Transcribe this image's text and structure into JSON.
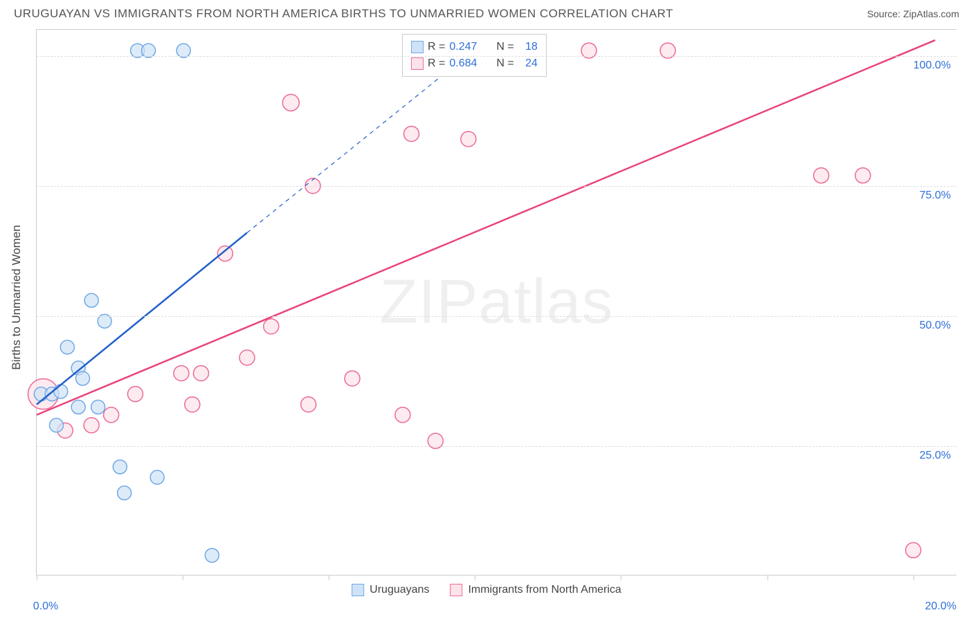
{
  "title": "URUGUAYAN VS IMMIGRANTS FROM NORTH AMERICA BIRTHS TO UNMARRIED WOMEN CORRELATION CHART",
  "source": "Source: ZipAtlas.com",
  "y_axis_title": "Births to Unmarried Women",
  "watermark": "ZIPatlas",
  "chart": {
    "type": "scatter",
    "xlim": [
      0,
      21
    ],
    "ylim": [
      0,
      105
    ],
    "x_ticks": [
      0,
      3.33,
      6.67,
      10,
      13.33,
      16.67,
      20
    ],
    "x_tick_labels_shown": {
      "0": "0.0%",
      "20": "20.0%"
    },
    "y_ticks": [
      25,
      50,
      75,
      100
    ],
    "y_tick_labels": [
      "25.0%",
      "50.0%",
      "75.0%",
      "100.0%"
    ],
    "grid_color": "#dddddd",
    "background_color": "#ffffff",
    "axis_color": "#cccccc",
    "label_color": "#2e6fd9",
    "series": [
      {
        "name": "Uruguayans",
        "color_fill": "#cfe2f7",
        "color_stroke": "#6fa8e6",
        "marker_radius": 10,
        "trend": {
          "color": "#1f5fc9",
          "width": 2.5,
          "x1": 0,
          "y1": 33,
          "x2_solid": 4.8,
          "y2_solid": 66,
          "x2_dash": 10.4,
          "y2_dash": 104
        },
        "stats": {
          "R": "0.247",
          "N": "18"
        },
        "points": [
          {
            "x": 2.3,
            "y": 101,
            "r": 10
          },
          {
            "x": 2.55,
            "y": 101,
            "r": 10
          },
          {
            "x": 3.35,
            "y": 101,
            "r": 10
          },
          {
            "x": 1.25,
            "y": 53,
            "r": 10
          },
          {
            "x": 1.55,
            "y": 49,
            "r": 10
          },
          {
            "x": 0.7,
            "y": 44,
            "r": 10
          },
          {
            "x": 0.95,
            "y": 40,
            "r": 10
          },
          {
            "x": 1.05,
            "y": 38,
            "r": 10
          },
          {
            "x": 0.1,
            "y": 35,
            "r": 10
          },
          {
            "x": 0.35,
            "y": 35,
            "r": 10
          },
          {
            "x": 0.55,
            "y": 35.5,
            "r": 10
          },
          {
            "x": 0.95,
            "y": 32.5,
            "r": 10
          },
          {
            "x": 1.4,
            "y": 32.5,
            "r": 10
          },
          {
            "x": 1.9,
            "y": 21,
            "r": 10
          },
          {
            "x": 2.0,
            "y": 16,
            "r": 10
          },
          {
            "x": 2.75,
            "y": 19,
            "r": 10
          },
          {
            "x": 4.0,
            "y": 4,
            "r": 10
          },
          {
            "x": 0.45,
            "y": 29,
            "r": 10
          }
        ]
      },
      {
        "name": "Immigrants from North America",
        "color_fill": "#fce3ea",
        "color_stroke": "#ec6a94",
        "marker_radius": 11,
        "trend": {
          "color": "#e9447a",
          "width": 2.5,
          "x1": 0,
          "y1": 31,
          "x2_solid": 20.5,
          "y2_solid": 103,
          "dash": false
        },
        "stats": {
          "R": "0.684",
          "N": "24"
        },
        "points": [
          {
            "x": 0.15,
            "y": 35,
            "r": 22
          },
          {
            "x": 0.65,
            "y": 28,
            "r": 11
          },
          {
            "x": 1.25,
            "y": 29,
            "r": 11
          },
          {
            "x": 1.7,
            "y": 31,
            "r": 11
          },
          {
            "x": 2.25,
            "y": 35,
            "r": 11
          },
          {
            "x": 3.3,
            "y": 39,
            "r": 11
          },
          {
            "x": 3.75,
            "y": 39,
            "r": 11
          },
          {
            "x": 3.55,
            "y": 33,
            "r": 11
          },
          {
            "x": 4.3,
            "y": 62,
            "r": 11
          },
          {
            "x": 4.8,
            "y": 42,
            "r": 11
          },
          {
            "x": 5.35,
            "y": 48,
            "r": 11
          },
          {
            "x": 5.8,
            "y": 91,
            "r": 12
          },
          {
            "x": 6.2,
            "y": 33,
            "r": 11
          },
          {
            "x": 6.3,
            "y": 75,
            "r": 11
          },
          {
            "x": 7.2,
            "y": 38,
            "r": 11
          },
          {
            "x": 8.35,
            "y": 31,
            "r": 11
          },
          {
            "x": 8.55,
            "y": 85,
            "r": 11
          },
          {
            "x": 9.1,
            "y": 26,
            "r": 11
          },
          {
            "x": 9.85,
            "y": 84,
            "r": 11
          },
          {
            "x": 12.6,
            "y": 101,
            "r": 11
          },
          {
            "x": 14.4,
            "y": 101,
            "r": 11
          },
          {
            "x": 17.9,
            "y": 77,
            "r": 11
          },
          {
            "x": 18.85,
            "y": 77,
            "r": 11
          },
          {
            "x": 20.0,
            "y": 5,
            "r": 11
          }
        ]
      }
    ]
  },
  "stats_legend_label_R": "R =",
  "stats_legend_label_N": "N =",
  "bottom_legend": [
    {
      "label": "Uruguayans",
      "fill": "#cfe2f7",
      "stroke": "#6fa8e6"
    },
    {
      "label": "Immigrants from North America",
      "fill": "#fce3ea",
      "stroke": "#ec6a94"
    }
  ]
}
